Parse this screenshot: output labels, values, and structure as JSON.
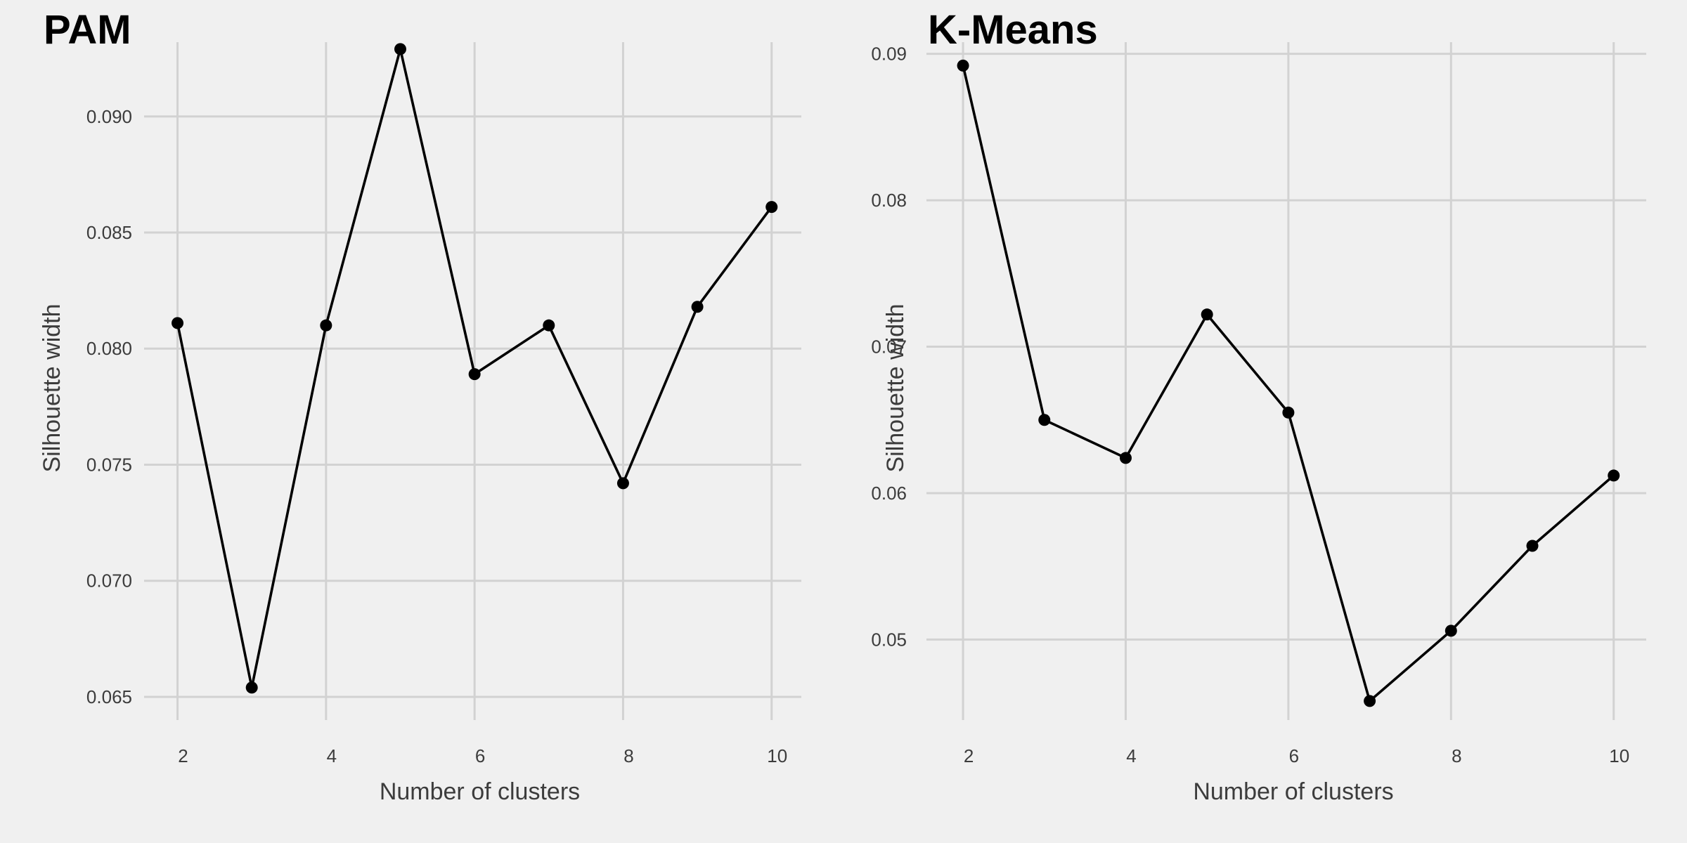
{
  "chart_data": [
    {
      "type": "line",
      "title": "PAM",
      "xlabel": "Number of clusters",
      "ylabel": "Silhouette width",
      "x": [
        2,
        3,
        4,
        5,
        6,
        7,
        8,
        9,
        10
      ],
      "values": [
        0.0811,
        0.0654,
        0.081,
        0.0929,
        0.0789,
        0.081,
        0.0742,
        0.0818,
        0.0861
      ],
      "xticks": [
        2,
        4,
        6,
        8,
        10
      ],
      "xtick_labels": [
        "2",
        "4",
        "6",
        "8",
        "10"
      ],
      "yticks": [
        0.065,
        0.07,
        0.075,
        0.08,
        0.085,
        0.09
      ],
      "ytick_labels": [
        "0.065",
        "0.070",
        "0.075",
        "0.080",
        "0.085",
        "0.090"
      ],
      "xlim": [
        1.55,
        10.4
      ],
      "ylim": [
        0.064,
        0.0932
      ],
      "grid": true,
      "legend": "none",
      "colors": {
        "line": "#000000",
        "grid": "#d2d2d2",
        "background": "#f0f0f0"
      }
    },
    {
      "type": "line",
      "title": "K-Means",
      "xlabel": "Number of clusters",
      "ylabel": "Silhouette width",
      "x": [
        2,
        3,
        4,
        5,
        6,
        7,
        8,
        9,
        10
      ],
      "values": [
        0.0892,
        0.065,
        0.0624,
        0.0722,
        0.0655,
        0.0458,
        0.0506,
        0.0564,
        0.0612
      ],
      "xticks": [
        2,
        4,
        6,
        8,
        10
      ],
      "xtick_labels": [
        "2",
        "4",
        "6",
        "8",
        "10"
      ],
      "yticks": [
        0.05,
        0.06,
        0.07,
        0.08,
        0.09
      ],
      "ytick_labels": [
        "0.05",
        "0.06",
        "0.07",
        "0.08",
        "0.09"
      ],
      "xlim": [
        1.55,
        10.4
      ],
      "ylim": [
        0.0445,
        0.0908
      ],
      "grid": true,
      "legend": "none",
      "colors": {
        "line": "#000000",
        "grid": "#d2d2d2",
        "background": "#f0f0f0"
      }
    }
  ]
}
